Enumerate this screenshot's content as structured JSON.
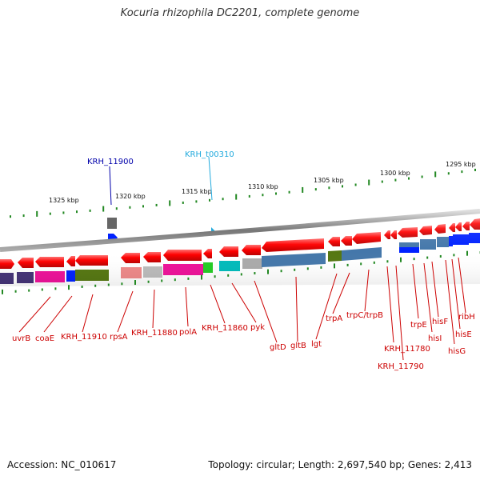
{
  "title": "Kocuria rhizophila DC2201, complete genome",
  "accession": "Accession: NC_010617",
  "topology": "Topology: circular; Length: 2,697,540 bp; Genes: 2,413",
  "ruler": [
    "1325 kbp",
    "1320 kbp",
    "1315 kbp",
    "1310 kbp",
    "1305 kbp",
    "1300 kbp",
    "1295 kbp"
  ],
  "top_labels": [
    {
      "text": "KRH_11900",
      "color": "#0000aa"
    },
    {
      "text": "KRH_t00310",
      "color": "#22aadd"
    }
  ],
  "gene_labels": [
    "uvrB",
    "coaE",
    "KRH_11910",
    "rpsA",
    "KRH_11880",
    "polA",
    "KRH_11860",
    "pyk",
    "gltD",
    "gltB",
    "lgt",
    "trpA",
    "trpC/trpB",
    "trpE",
    "hisI",
    "hisF",
    "hisG",
    "hisE",
    "ribH",
    "KRH_11780",
    "KRH_11790"
  ],
  "colors": {
    "gene_label": "#cc0000",
    "arrow": "#ff0000",
    "ruler_tick": "#228822",
    "backbone": "#888888"
  }
}
